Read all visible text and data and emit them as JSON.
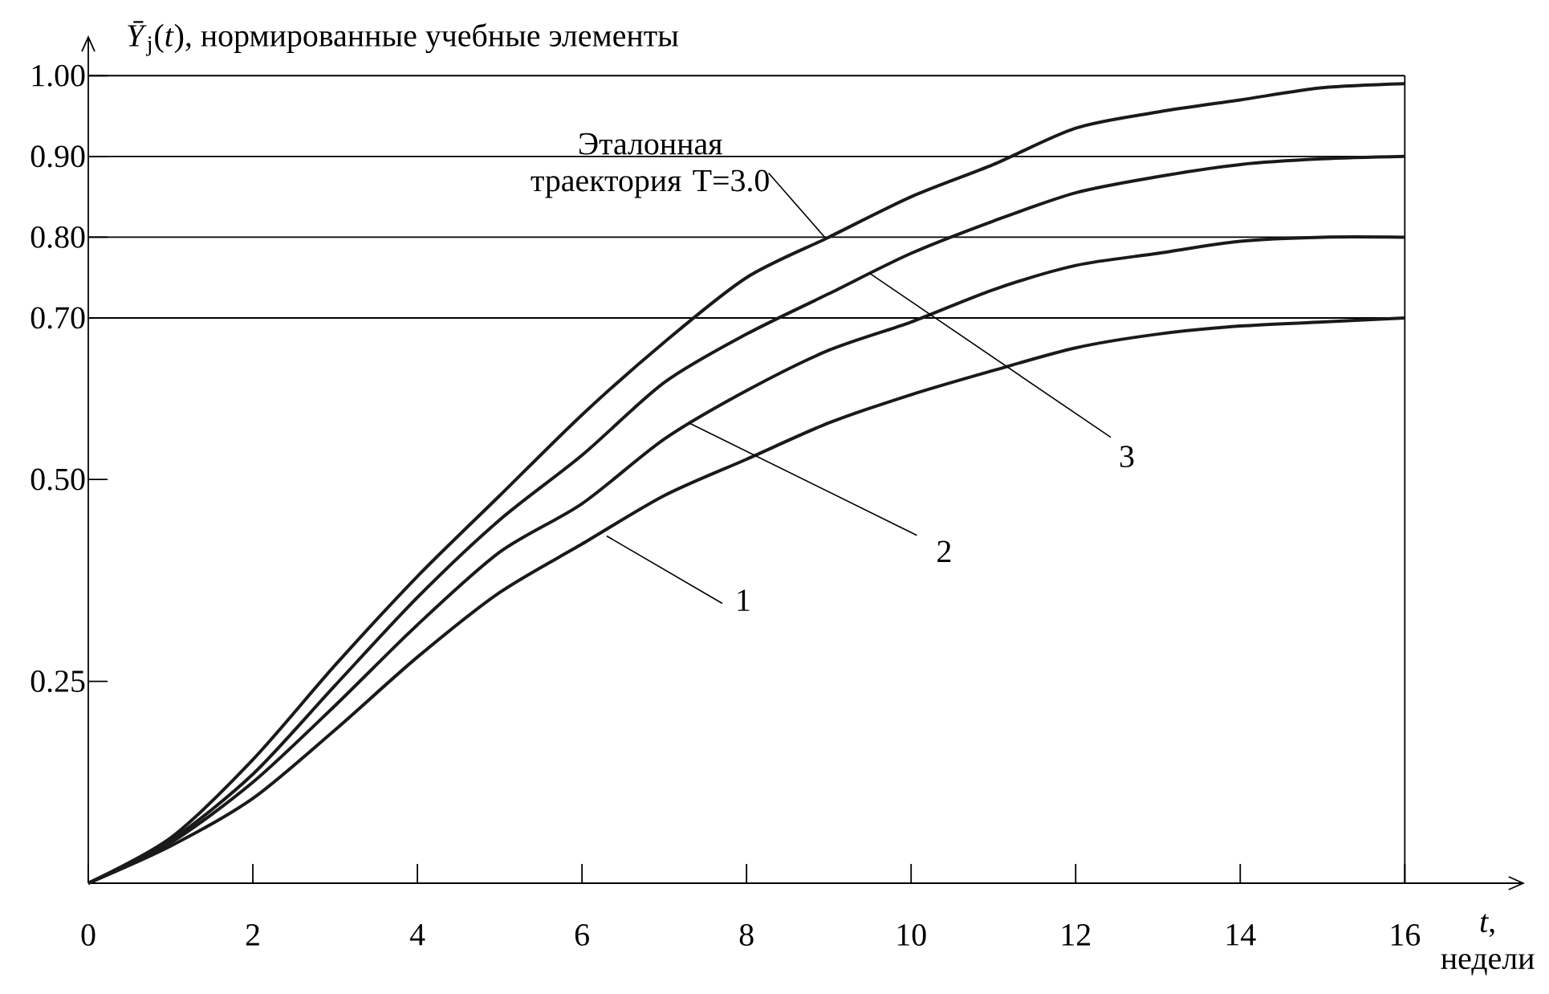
{
  "chart_data": {
    "type": "line",
    "ylabel": "*Ȳ*$_{j}$(*t*), нормированные учебные элементы",
    "xlabel": "*t*, недели",
    "x": [
      0,
      1,
      2,
      3,
      4,
      5,
      6,
      7,
      8,
      9,
      10,
      11,
      12,
      13,
      14,
      15,
      16
    ],
    "series": [
      {
        "color": "#1a1a1a",
        "values": [
          0,
          0.056,
          0.153,
          0.27,
          0.38,
          0.48,
          0.58,
          0.67,
          0.75,
          0.8,
          0.85,
          0.89,
          0.935,
          0.955,
          0.97,
          0.985,
          0.99
        ]
      },
      {
        "color": "#1a1a1a",
        "values": [
          0,
          0.053,
          0.135,
          0.245,
          0.354,
          0.45,
          0.53,
          0.62,
          0.68,
          0.73,
          0.78,
          0.82,
          0.855,
          0.875,
          0.89,
          0.897,
          0.9
        ]
      },
      {
        "color": "#1a1a1a",
        "values": [
          0,
          0.05,
          0.125,
          0.22,
          0.32,
          0.41,
          0.47,
          0.55,
          0.61,
          0.66,
          0.695,
          0.735,
          0.765,
          0.78,
          0.795,
          0.8,
          0.8
        ]
      },
      {
        "color": "#1a1a1a",
        "values": [
          0,
          0.046,
          0.105,
          0.19,
          0.28,
          0.36,
          0.42,
          0.48,
          0.525,
          0.57,
          0.605,
          0.635,
          0.663,
          0.68,
          0.69,
          0.695,
          0.7
        ]
      }
    ],
    "annotations": [
      {
        "text": "Эталонная траектория T=3.0",
        "x": 8.95,
        "y": 0.8
      },
      {
        "text": "3",
        "x": 9.5,
        "y": 0.755
      },
      {
        "text": "2",
        "x": 7.3,
        "y": 0.57
      },
      {
        "text": "1",
        "x": 6.3,
        "y": 0.43
      }
    ],
    "ref_lines": [
      {
        "axis": "y",
        "value": 0.7
      },
      {
        "axis": "y",
        "value": 0.8
      },
      {
        "axis": "y",
        "value": 0.9
      },
      {
        "axis": "y",
        "value": 1.0
      },
      {
        "axis": "x",
        "value": 16
      }
    ],
    "xlim": [
      0,
      17.46
    ],
    "ylim": [
      0,
      1.05
    ],
    "xticks": [
      0,
      2,
      4,
      6,
      8,
      10,
      12,
      14,
      16
    ],
    "yticks": [
      {
        "value": 0.25,
        "label": "0.25"
      },
      {
        "value": 0.5,
        "label": "0.50"
      },
      {
        "value": 0.7,
        "label": "0.70"
      },
      {
        "value": 0.8,
        "label": "0.80"
      },
      {
        "value": 0.9,
        "label": "0.90"
      },
      {
        "value": 1.0,
        "label": "1.00"
      }
    ]
  }
}
